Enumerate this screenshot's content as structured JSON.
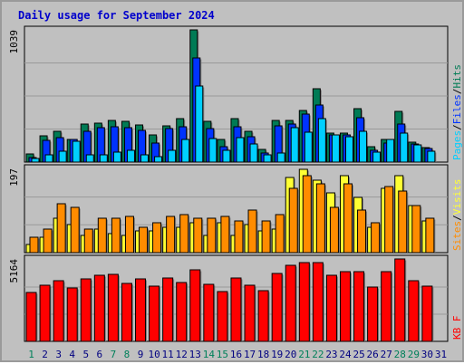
{
  "title": "Daily usage for September 2024",
  "chart_data": [
    {
      "type": "bar",
      "panel": "pages-files-hits",
      "scale_label": "1039",
      "ylim": [
        0,
        1039
      ],
      "categories": [
        "1",
        "2",
        "3",
        "4",
        "5",
        "6",
        "7",
        "8",
        "9",
        "10",
        "11",
        "12",
        "13",
        "14",
        "15",
        "16",
        "17",
        "18",
        "19",
        "20",
        "21",
        "22",
        "23",
        "24",
        "25",
        "26",
        "27",
        "28",
        "29",
        "30",
        "31"
      ],
      "series": [
        {
          "name": "Hits",
          "color": "#007b55",
          "values": [
            65,
            205,
            240,
            175,
            300,
            305,
            330,
            320,
            295,
            210,
            285,
            340,
            1039,
            320,
            175,
            340,
            240,
            100,
            330,
            330,
            405,
            575,
            230,
            230,
            420,
            120,
            175,
            395,
            160,
            115,
            0
          ]
        },
        {
          "name": "Files",
          "color": "#0033ff",
          "values": [
            35,
            170,
            195,
            175,
            245,
            270,
            280,
            270,
            250,
            150,
            260,
            280,
            820,
            260,
            120,
            280,
            200,
            70,
            285,
            300,
            380,
            450,
            210,
            210,
            350,
            90,
            150,
            300,
            145,
            105,
            0
          ]
        },
        {
          "name": "Pages",
          "color": "#00cfff",
          "values": [
            25,
            55,
            85,
            165,
            55,
            55,
            80,
            90,
            55,
            40,
            90,
            175,
            600,
            185,
            90,
            195,
            140,
            55,
            70,
            270,
            235,
            340,
            210,
            200,
            245,
            75,
            180,
            230,
            135,
            85,
            0
          ]
        }
      ],
      "names_row": [
        {
          "text": "Pages",
          "color": "#00cfff"
        },
        {
          "text": "/",
          "color": "#000000"
        },
        {
          "text": "Files",
          "color": "#0033ff"
        },
        {
          "text": "/",
          "color": "#000000"
        },
        {
          "text": "Hits",
          "color": "#007b55"
        }
      ]
    },
    {
      "type": "bar",
      "panel": "visits-sites",
      "scale_label": "197",
      "ylim": [
        0,
        197
      ],
      "categories": [
        "1",
        "2",
        "3",
        "4",
        "5",
        "6",
        "7",
        "8",
        "9",
        "10",
        "11",
        "12",
        "13",
        "14",
        "15",
        "16",
        "17",
        "18",
        "19",
        "20",
        "21",
        "22",
        "23",
        "24",
        "25",
        "26",
        "27",
        "28",
        "29",
        "30",
        "31"
      ],
      "series": [
        {
          "name": "Visits",
          "color": "#ffff33",
          "values": [
            20,
            35,
            80,
            65,
            40,
            55,
            45,
            40,
            50,
            50,
            60,
            60,
            70,
            40,
            70,
            40,
            65,
            50,
            55,
            175,
            195,
            170,
            140,
            180,
            130,
            60,
            150,
            180,
            110,
            75,
            0
          ]
        },
        {
          "name": "Sites",
          "color": "#ff8c00",
          "values": [
            35,
            55,
            115,
            105,
            55,
            80,
            80,
            85,
            60,
            70,
            85,
            88,
            80,
            80,
            85,
            75,
            100,
            75,
            90,
            150,
            180,
            160,
            105,
            160,
            100,
            70,
            155,
            145,
            110,
            80,
            0
          ]
        }
      ],
      "names_row": [
        {
          "text": "Sites",
          "color": "#ff8c00"
        },
        {
          "text": "/",
          "color": "#000000"
        },
        {
          "text": "Visits",
          "color": "#ffff33"
        }
      ]
    },
    {
      "type": "bar",
      "panel": "kbytes",
      "scale_label": "5164",
      "ylim": [
        0,
        5164
      ],
      "categories": [
        "1",
        "2",
        "3",
        "4",
        "5",
        "6",
        "7",
        "8",
        "9",
        "10",
        "11",
        "12",
        "13",
        "14",
        "15",
        "16",
        "17",
        "18",
        "19",
        "20",
        "21",
        "22",
        "23",
        "24",
        "25",
        "26",
        "27",
        "28",
        "29",
        "30",
        "31"
      ],
      "series": [
        {
          "name": "KB F",
          "color": "#ff0000",
          "values": [
            3070,
            3540,
            3810,
            3370,
            3940,
            4120,
            4180,
            3650,
            3920,
            3480,
            4000,
            3700,
            4500,
            3560,
            3140,
            4000,
            3540,
            3170,
            4250,
            4750,
            4920,
            4920,
            4120,
            4390,
            4390,
            3410,
            4390,
            5164,
            3810,
            3480,
            0
          ]
        }
      ],
      "names_row": [
        {
          "text": "KB F",
          "color": "#ff0000"
        }
      ]
    }
  ],
  "weekend_days": [
    "1",
    "7",
    "8",
    "14",
    "15",
    "21",
    "22",
    "28",
    "29"
  ],
  "x_label_color_weekday": "#000080",
  "x_label_color_weekend": "#00805a"
}
